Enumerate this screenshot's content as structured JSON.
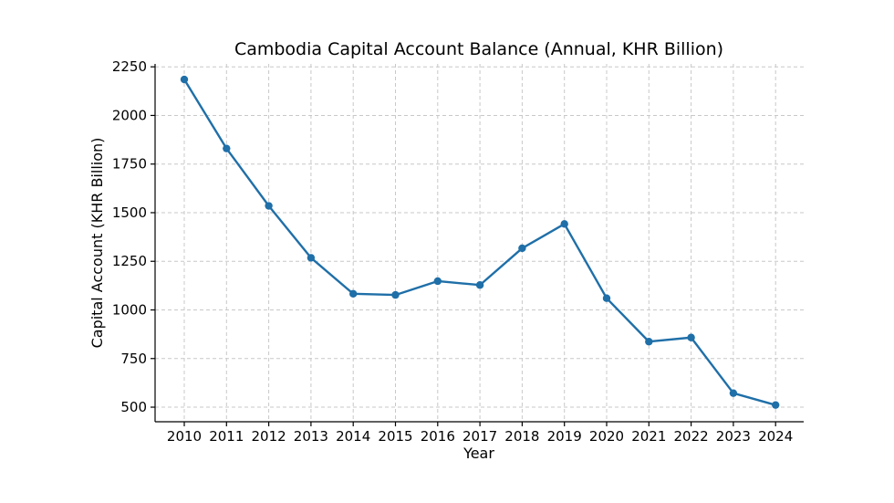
{
  "chart_data": {
    "type": "line",
    "title": "Cambodia Capital Account Balance (Annual, KHR Billion)",
    "xlabel": "Year",
    "ylabel": "Capital Account (KHR Billion)",
    "x": [
      "2010",
      "2011",
      "2012",
      "2013",
      "2014",
      "2015",
      "2016",
      "2017",
      "2018",
      "2019",
      "2020",
      "2021",
      "2022",
      "2023",
      "2024"
    ],
    "series": [
      {
        "values": [
          2185,
          1830,
          1535,
          1268,
          1083,
          1077,
          1148,
          1128,
          1317,
          1442,
          1060,
          837,
          858,
          572,
          511
        ],
        "color": "#1f6fa8"
      }
    ],
    "ylim": [
      425,
      2265
    ],
    "yticks": [
      500,
      750,
      1000,
      1250,
      1500,
      1750,
      2000,
      2250
    ],
    "grid": true,
    "markers": true
  }
}
